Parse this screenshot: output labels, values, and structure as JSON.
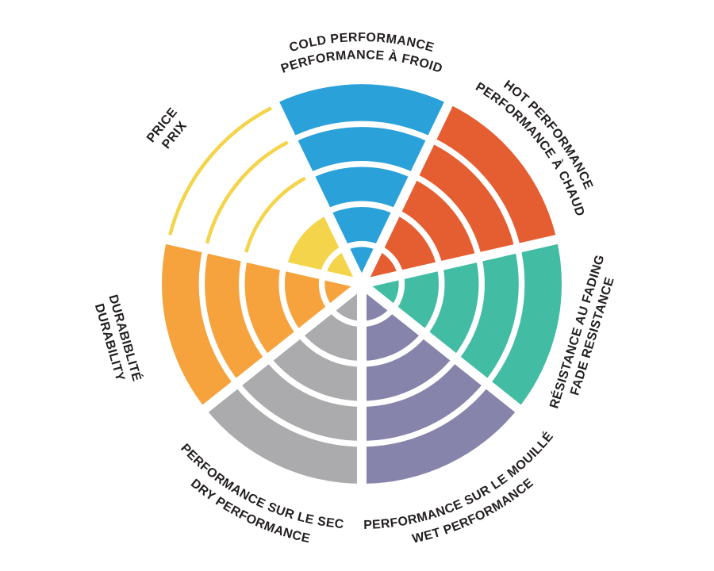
{
  "page": {
    "background": "#FFFFFF"
  },
  "chart_data": {
    "type": "pie",
    "subtype": "radial-rating-wheel",
    "description": "Bilingual tire performance rating wheel: 7 equal sectors, each split into 5 concentric rings; the number of colored rings filled from the center indicates the rating out of 5. Unearned rings are shown as thin colored outline arcs.",
    "rings": 5,
    "max_rating": 5,
    "rotation": "first sector centered at 12 o'clock, sectors ordered clockwise",
    "grid": "white arcs at the 4 inner ring boundaries and white radial separators between sectors",
    "legend_position": "bilingual labels placed around the outside of the wheel, tangent to each sector",
    "text_color": "#231F20",
    "sectors": [
      {
        "id": "cold-performance",
        "label_en": "COLD PERFORMANCE",
        "label_fr": "PERFORMANCE À FROID",
        "color": "#2BA1D9",
        "rating": 5
      },
      {
        "id": "hot-performance",
        "label_en": "HOT PERFORMANCE",
        "label_fr": "PERFORMANCE À CHAUD",
        "color": "#E55E31",
        "rating": 5
      },
      {
        "id": "fade-resistance",
        "label_en": "FADE RESISTANCE",
        "label_fr": "RÉSISTANCE AU FADING",
        "color": "#42BDA3",
        "rating": 5
      },
      {
        "id": "wet-performance",
        "label_en": "WET PERFORMANCE",
        "label_fr": "PERFORMANCE SUR LE MOUILLÉ",
        "color": "#8784AC",
        "rating": 5
      },
      {
        "id": "dry-performance",
        "label_en": "DRY PERFORMANCE",
        "label_fr": "PERFORMANCE SUR LE SEC",
        "color": "#ABAAAD",
        "rating": 5
      },
      {
        "id": "durability",
        "label_en": "DURABILITY",
        "label_fr": "DURABIBLITÉ",
        "color": "#F6A33D",
        "rating": 5
      },
      {
        "id": "price",
        "label_en": "PRICE",
        "label_fr": "PRIX",
        "color": "#F4D44A",
        "rating": 2
      }
    ]
  }
}
